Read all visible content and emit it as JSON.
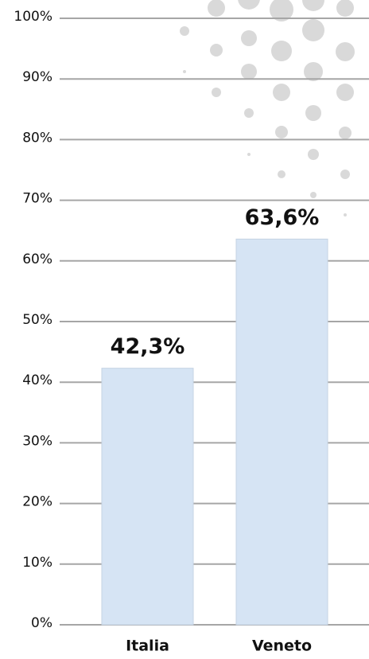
{
  "chart_data": {
    "type": "bar",
    "categories": [
      "Italia",
      "Veneto"
    ],
    "values": [
      42.3,
      63.6
    ],
    "value_labels": [
      "42,3%",
      "63,6%"
    ],
    "color": "#d6e4f4",
    "ylim": [
      0,
      100
    ],
    "yticks": [
      {
        "value": 0,
        "label": "0%"
      },
      {
        "value": 10,
        "label": "10%"
      },
      {
        "value": 20,
        "label": "20%"
      },
      {
        "value": 30,
        "label": "30%"
      },
      {
        "value": 40,
        "label": "40%"
      },
      {
        "value": 50,
        "label": "50%"
      },
      {
        "value": 60,
        "label": "60%"
      },
      {
        "value": 70,
        "label": "70%"
      },
      {
        "value": 80,
        "label": "80%"
      },
      {
        "value": 90,
        "label": "90%"
      },
      {
        "value": 100,
        "label": "100%"
      }
    ],
    "grid": true
  }
}
